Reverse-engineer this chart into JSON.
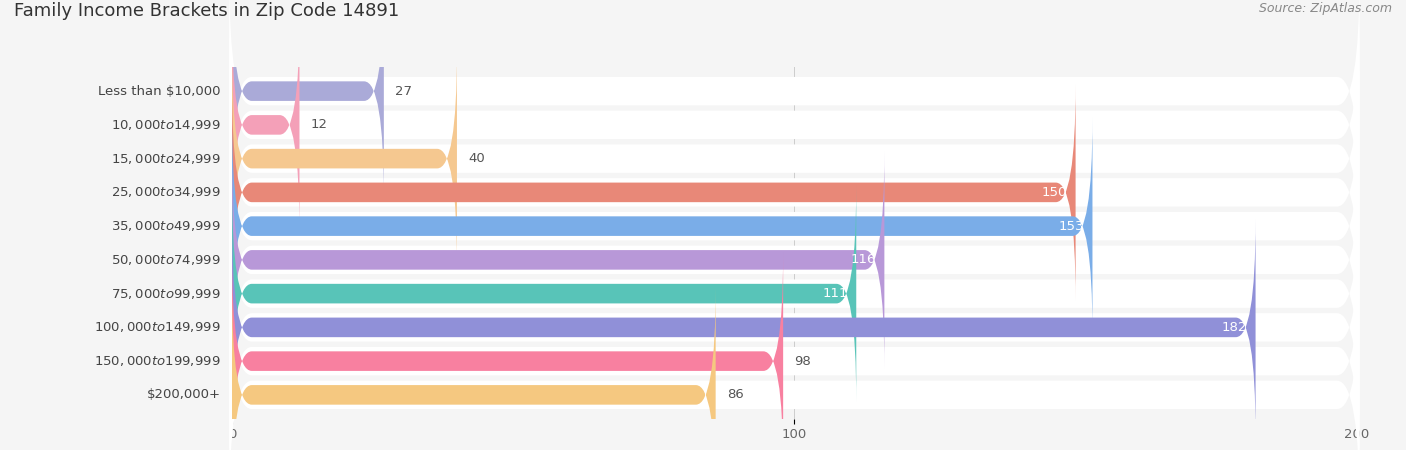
{
  "title": "Family Income Brackets in Zip Code 14891",
  "source": "Source: ZipAtlas.com",
  "categories": [
    "Less than $10,000",
    "$10,000 to $14,999",
    "$15,000 to $24,999",
    "$25,000 to $34,999",
    "$35,000 to $49,999",
    "$50,000 to $74,999",
    "$75,000 to $99,999",
    "$100,000 to $149,999",
    "$150,000 to $199,999",
    "$200,000+"
  ],
  "values": [
    27,
    12,
    40,
    150,
    153,
    116,
    111,
    182,
    98,
    86
  ],
  "bar_colors": [
    "#aaaad8",
    "#f4a0b8",
    "#f5c890",
    "#e88878",
    "#7aade8",
    "#b898d8",
    "#58c4b8",
    "#9090d8",
    "#f880a0",
    "#f5c880"
  ],
  "xlim": [
    0,
    200
  ],
  "xticks": [
    0,
    100,
    200
  ],
  "background_color": "#f5f5f5",
  "title_fontsize": 13,
  "label_fontsize": 9.5,
  "value_fontsize": 9.5
}
